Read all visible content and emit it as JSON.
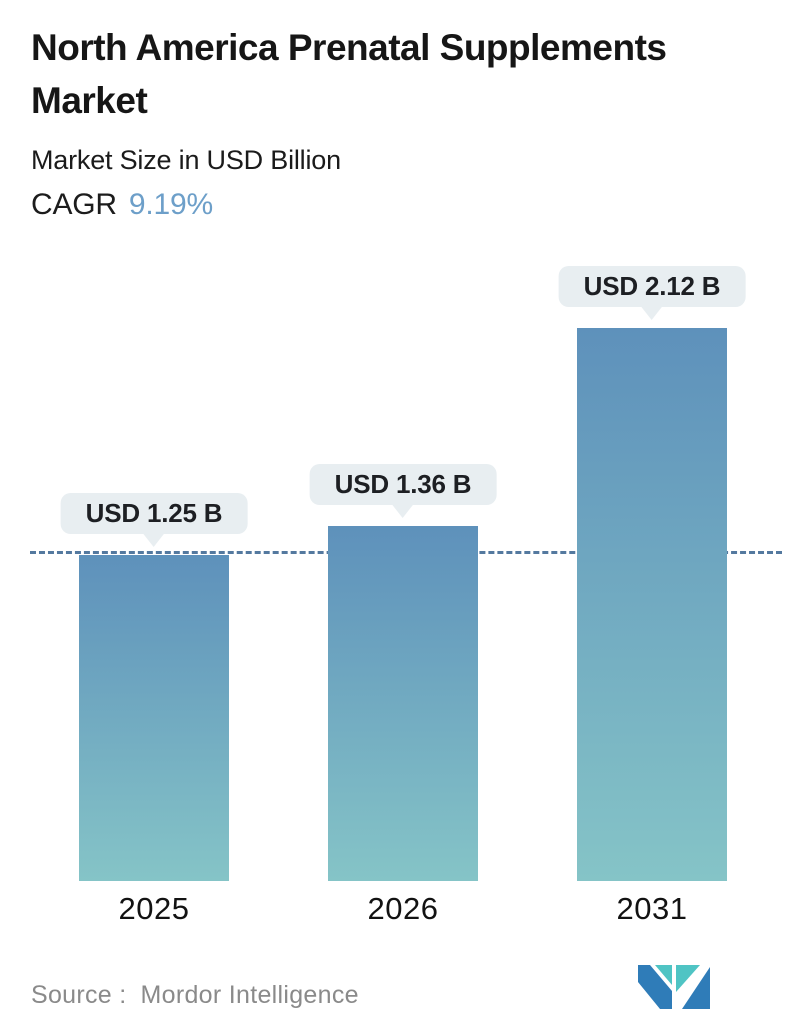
{
  "header": {
    "title": "North America Prenatal Supplements Market",
    "subtitle": "Market Size in USD Billion",
    "cagr_label": "CAGR",
    "cagr_value": "9.19%"
  },
  "chart_data": {
    "type": "bar",
    "title": "North America Prenatal Supplements Market",
    "subtitle": "Market Size in USD Billion",
    "cagr": "9.19%",
    "unit": "USD Billion",
    "categories": [
      "2025",
      "2026",
      "2031"
    ],
    "values": [
      1.25,
      1.36,
      2.12
    ],
    "bar_labels": [
      "USD 1.25 B",
      "USD 1.36 B",
      "USD 2.12 B"
    ],
    "ylim": [
      0,
      2.3
    ],
    "grid": false,
    "legend": "none",
    "baseline": {
      "value": 1.25,
      "style": "dashed",
      "color": "#54799f"
    },
    "colors": {
      "bar_gradient_top": "#5e91bb",
      "bar_gradient_bottom": "#85c4c7",
      "bubble_bg": "#e8eef1",
      "accent_blue": "#6d9fc9",
      "text_dark": "#161616",
      "source_gray": "#8a8a8a",
      "logo_blue": "#2f7cb8",
      "logo_teal": "#4fc4c4"
    }
  },
  "footer": {
    "source_label": "Source :",
    "source_name": "Mordor Intelligence",
    "logo": "mordor-intelligence-logo"
  }
}
